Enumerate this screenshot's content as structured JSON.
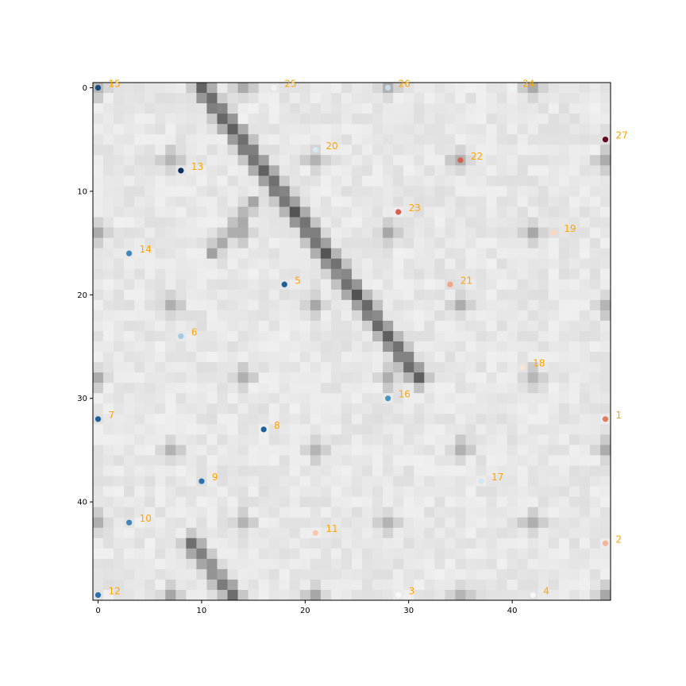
{
  "chart_data": {
    "type": "heatmap",
    "title": "",
    "xlabel": "",
    "ylabel": "",
    "grid": false,
    "xlim": [
      -0.5,
      49.5
    ],
    "ylim": [
      49.5,
      -0.5
    ],
    "x_ticks": [
      0,
      10,
      20,
      30,
      40
    ],
    "y_ticks": [
      0,
      10,
      20,
      30,
      40
    ],
    "x_tick_labels": [
      "0",
      "10",
      "20",
      "30",
      "40"
    ],
    "y_tick_labels": [
      "0",
      "10",
      "20",
      "30",
      "40"
    ],
    "grid_size": 50,
    "colormap": "Greys",
    "background_pattern": "diamond lattice of grey diagonal ridges on a light background, with a dark diagonal ridge from (10,0) to (31,28) and a dark band near (12-13,47-49)",
    "points_colormap": "RdBu_r",
    "label_color": "#ffa500",
    "points": [
      {
        "label": "1",
        "x": 49,
        "y": 32,
        "color": "#e07b5f"
      },
      {
        "label": "2",
        "x": 49,
        "y": 44,
        "color": "#f4b495"
      },
      {
        "label": "3",
        "x": 29,
        "y": 49,
        "color": "#f7f7f7"
      },
      {
        "label": "4",
        "x": 42,
        "y": 49,
        "color": "#f7f7f7"
      },
      {
        "label": "5",
        "x": 18,
        "y": 19,
        "color": "#1f5f9c"
      },
      {
        "label": "6",
        "x": 8,
        "y": 24,
        "color": "#a3cce3"
      },
      {
        "label": "7",
        "x": 0,
        "y": 32,
        "color": "#1f5f9c"
      },
      {
        "label": "8",
        "x": 16,
        "y": 33,
        "color": "#1f5f9c"
      },
      {
        "label": "9",
        "x": 10,
        "y": 38,
        "color": "#2a6fae"
      },
      {
        "label": "10",
        "x": 3,
        "y": 42,
        "color": "#3c86bd"
      },
      {
        "label": "11",
        "x": 21,
        "y": 43,
        "color": "#f8c6ae"
      },
      {
        "label": "12",
        "x": 0,
        "y": 49,
        "color": "#2a6fae"
      },
      {
        "label": "13",
        "x": 8,
        "y": 8,
        "color": "#0b305f"
      },
      {
        "label": "14",
        "x": 3,
        "y": 16,
        "color": "#3c86bd"
      },
      {
        "label": "15",
        "x": 0,
        "y": 0,
        "color": "#174a7e"
      },
      {
        "label": "16",
        "x": 28,
        "y": 30,
        "color": "#4a94c4"
      },
      {
        "label": "17",
        "x": 37,
        "y": 38,
        "color": "#d3e6f1"
      },
      {
        "label": "18",
        "x": 41,
        "y": 27,
        "color": "#fbe3d5"
      },
      {
        "label": "19",
        "x": 44,
        "y": 14,
        "color": "#fbd7c3"
      },
      {
        "label": "20",
        "x": 21,
        "y": 6,
        "color": "#d9e9f2"
      },
      {
        "label": "21",
        "x": 34,
        "y": 19,
        "color": "#f2a582"
      },
      {
        "label": "22",
        "x": 35,
        "y": 7,
        "color": "#d6604d"
      },
      {
        "label": "23",
        "x": 29,
        "y": 12,
        "color": "#d6604d"
      },
      {
        "label": "24",
        "x": 40,
        "y": 0,
        "color": "#eef3f7"
      },
      {
        "label": "25",
        "x": 17,
        "y": 0,
        "color": "#f1f4f7"
      },
      {
        "label": "26",
        "x": 28,
        "y": 0,
        "color": "#c6dcec"
      },
      {
        "label": "27",
        "x": 49,
        "y": 5,
        "color": "#67001f"
      }
    ]
  }
}
